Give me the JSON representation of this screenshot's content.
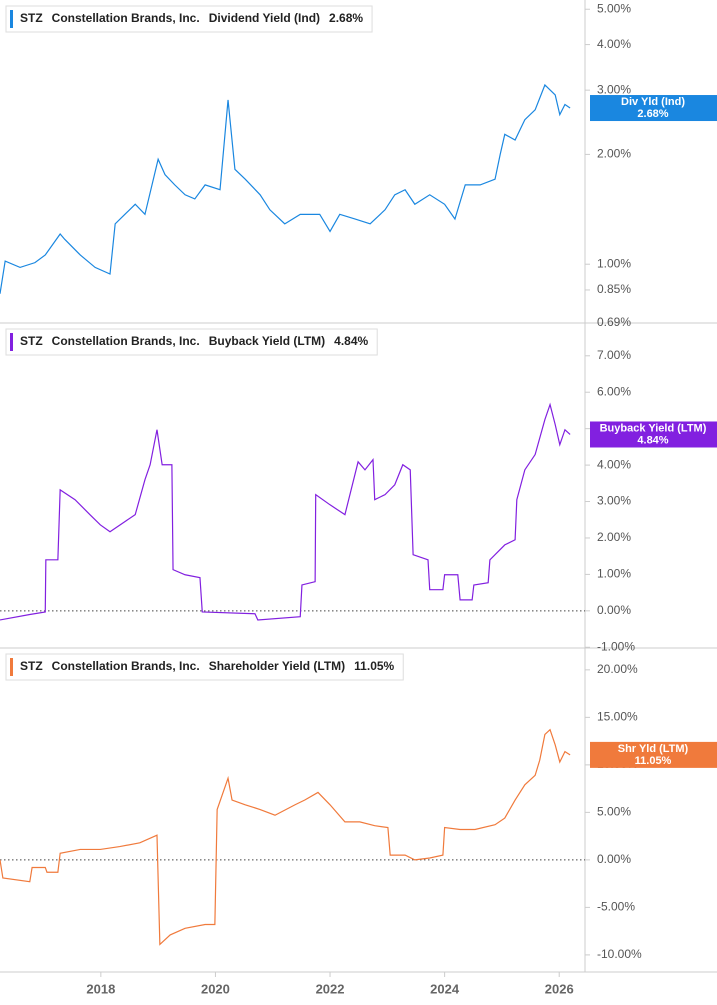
{
  "chart_data": [
    {
      "type": "line",
      "ticker": "STZ",
      "company": "Constellation Brands, Inc.",
      "log_scale": true,
      "zero_line": false,
      "xlim": [
        2016.24,
        2026.45
      ],
      "ylim": [
        0.69,
        5.3
      ],
      "yticks": [
        {
          "value": 0.69,
          "label": "0.69%"
        },
        {
          "value": 0.85,
          "label": "0.85%"
        },
        {
          "value": 1,
          "label": "1.00%"
        },
        {
          "value": 2,
          "label": "2.00%"
        },
        {
          "value": 3,
          "label": "3.00%"
        },
        {
          "value": 4,
          "label": "4.00%"
        },
        {
          "value": 5,
          "label": "5.00%"
        }
      ],
      "x": [
        2016.24,
        2016.33,
        2016.59,
        2016.85,
        2017.03,
        2017.29,
        2017.37,
        2017.64,
        2017.9,
        2018.16,
        2018.25,
        2018.42,
        2018.6,
        2018.77,
        2019.0,
        2019.12,
        2019.29,
        2019.47,
        2019.64,
        2019.82,
        2020.08,
        2020.22,
        2020.34,
        2020.52,
        2020.78,
        2020.95,
        2021.21,
        2021.48,
        2021.82,
        2022.0,
        2022.17,
        2022.44,
        2022.7,
        2022.96,
        2023.13,
        2023.31,
        2023.48,
        2023.74,
        2024.0,
        2024.18,
        2024.36,
        2024.62,
        2024.88,
        2024.97,
        2025.05,
        2025.23,
        2025.4,
        2025.58,
        2025.75,
        2025.93,
        2026.01,
        2026.1,
        2026.19
      ],
      "series": [
        {
          "name": "Dividend Yield (Ind)",
          "tag": "Div Yld (Ind)",
          "last_label": "2.68%",
          "color": "#1a87e0",
          "values": [
            0.83,
            1.02,
            0.98,
            1.01,
            1.06,
            1.21,
            1.17,
            1.06,
            0.98,
            0.94,
            1.29,
            1.37,
            1.46,
            1.37,
            1.94,
            1.76,
            1.65,
            1.55,
            1.51,
            1.65,
            1.6,
            2.82,
            1.82,
            1.71,
            1.55,
            1.41,
            1.29,
            1.37,
            1.37,
            1.23,
            1.37,
            1.33,
            1.29,
            1.41,
            1.55,
            1.6,
            1.46,
            1.55,
            1.46,
            1.33,
            1.65,
            1.65,
            1.71,
            2.0,
            2.27,
            2.19,
            2.49,
            2.65,
            3.1,
            2.91,
            2.57,
            2.74,
            2.68
          ]
        }
      ]
    },
    {
      "type": "line",
      "ticker": "STZ",
      "company": "Constellation Brands, Inc.",
      "log_scale": false,
      "zero_line": true,
      "xlim": [
        2016.24,
        2026.45
      ],
      "ylim": [
        -1.02,
        7.9
      ],
      "yticks": [
        {
          "value": -1,
          "label": "-1.00%"
        },
        {
          "value": 0,
          "label": "0.00%"
        },
        {
          "value": 1,
          "label": "1.00%"
        },
        {
          "value": 2,
          "label": "2.00%"
        },
        {
          "value": 3,
          "label": "3.00%"
        },
        {
          "value": 4,
          "label": "4.00%"
        },
        {
          "value": 5,
          "label": "5.00%"
        },
        {
          "value": 6,
          "label": "6.00%"
        },
        {
          "value": 7,
          "label": "7.00%"
        }
      ],
      "x": [
        2016.24,
        2016.76,
        2017.03,
        2017.04,
        2017.25,
        2017.29,
        2017.55,
        2017.81,
        2017.99,
        2018.16,
        2018.42,
        2018.6,
        2018.77,
        2018.86,
        2018.98,
        2019.07,
        2019.24,
        2019.26,
        2019.47,
        2019.73,
        2019.77,
        2020.69,
        2020.74,
        2021.48,
        2021.51,
        2021.74,
        2021.75,
        2022.0,
        2022.26,
        2022.49,
        2022.61,
        2022.75,
        2022.78,
        2022.96,
        2023.13,
        2023.27,
        2023.4,
        2023.45,
        2023.71,
        2023.74,
        2023.97,
        2024.0,
        2024.23,
        2024.27,
        2024.48,
        2024.51,
        2024.76,
        2024.79,
        2025.05,
        2025.23,
        2025.26,
        2025.4,
        2025.58,
        2025.75,
        2025.84,
        2025.93,
        2026.01,
        2026.1,
        2026.19
      ],
      "series": [
        {
          "name": "Buyback Yield (LTM)",
          "tag": "Buyback Yield (LTM)",
          "last_label": "4.84%",
          "color": "#8220e0",
          "values": [
            -0.25,
            -0.1,
            -0.03,
            1.4,
            1.4,
            3.32,
            3.05,
            2.64,
            2.36,
            2.17,
            2.45,
            2.64,
            3.6,
            4.01,
            4.97,
            4.01,
            4.01,
            1.13,
            0.99,
            0.91,
            -0.03,
            -0.08,
            -0.25,
            -0.16,
            0.71,
            0.8,
            3.19,
            2.91,
            2.64,
            4.09,
            3.87,
            4.15,
            3.05,
            3.19,
            3.46,
            4.01,
            3.87,
            1.54,
            1.4,
            0.58,
            0.58,
            0.99,
            0.99,
            0.3,
            0.3,
            0.71,
            0.77,
            1.4,
            1.81,
            1.95,
            3.05,
            3.87,
            4.29,
            5.25,
            5.66,
            5.11,
            4.56,
            4.97,
            4.84
          ]
        }
      ]
    },
    {
      "type": "line",
      "ticker": "STZ",
      "company": "Constellation Brands, Inc.",
      "log_scale": false,
      "zero_line": true,
      "xlim": [
        2016.24,
        2026.45
      ],
      "ylim": [
        -11.8,
        22.3
      ],
      "xticks": [
        2018,
        2020,
        2022,
        2024,
        2026
      ],
      "yticks": [
        {
          "value": -10,
          "label": "-10.00%"
        },
        {
          "value": -5,
          "label": "-5.00%"
        },
        {
          "value": 0,
          "label": "0.00%"
        },
        {
          "value": 5,
          "label": "5.00%"
        },
        {
          "value": 10,
          "label": "10.00%"
        },
        {
          "value": 15,
          "label": "15.00%"
        },
        {
          "value": 20,
          "label": "20.00%"
        }
      ],
      "x": [
        2016.24,
        2016.29,
        2016.76,
        2016.8,
        2017.03,
        2017.06,
        2017.25,
        2017.29,
        2017.64,
        2017.99,
        2018.33,
        2018.68,
        2018.98,
        2019.03,
        2019.21,
        2019.47,
        2019.82,
        2019.99,
        2020.03,
        2020.22,
        2020.29,
        2020.52,
        2020.78,
        2021.04,
        2021.39,
        2021.56,
        2021.79,
        2022.0,
        2022.26,
        2022.52,
        2022.78,
        2023.01,
        2023.05,
        2023.31,
        2023.48,
        2023.74,
        2023.97,
        2024.0,
        2024.27,
        2024.53,
        2024.88,
        2025.05,
        2025.23,
        2025.4,
        2025.58,
        2025.66,
        2025.75,
        2025.84,
        2025.93,
        2026.01,
        2026.1,
        2026.19
      ],
      "series": [
        {
          "name": "Shareholder Yield (LTM)",
          "tag": "Shr Yld (LTM)",
          "last_label": "11.05%",
          "color": "#f07a3c",
          "values": [
            0,
            -1.9,
            -2.3,
            -0.8,
            -0.8,
            -1.3,
            -1.3,
            0.7,
            1.1,
            1.1,
            1.4,
            1.8,
            2.6,
            -8.9,
            -7.9,
            -7.2,
            -6.8,
            -6.8,
            5.3,
            8.6,
            6.3,
            5.8,
            5.3,
            4.7,
            5.8,
            6.3,
            7.1,
            5.8,
            4.0,
            4.0,
            3.6,
            3.4,
            0.5,
            0.5,
            0,
            0.2,
            0.5,
            3.4,
            3.2,
            3.2,
            3.7,
            4.4,
            6.3,
            7.9,
            8.9,
            10.5,
            13.2,
            13.7,
            12.1,
            10.3,
            11.4,
            11.05
          ]
        }
      ]
    }
  ]
}
